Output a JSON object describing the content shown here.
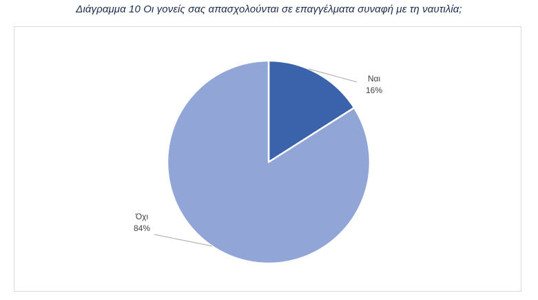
{
  "caption": "Διάγραμμα 10 Οι γονείς σας απασχολούνται σε επαγγέλματα συναφή με τη ναυτιλία;",
  "colors": {
    "slice_nai": "#3a63ac",
    "slice_oxi": "#91a5d6",
    "slice_border": "#ffffff",
    "leader_line": "#a6a6a6",
    "frame_border": "#d9d9d9"
  },
  "chart_data": {
    "type": "pie",
    "title": "",
    "slices": [
      {
        "label": "Ναι",
        "value": 16,
        "percent_label": "16%",
        "color": "#3a63ac"
      },
      {
        "label": "Όχι",
        "value": 84,
        "percent_label": "84%",
        "color": "#91a5d6"
      }
    ],
    "legend": "none",
    "start_angle_deg": 0,
    "direction": "clockwise"
  }
}
